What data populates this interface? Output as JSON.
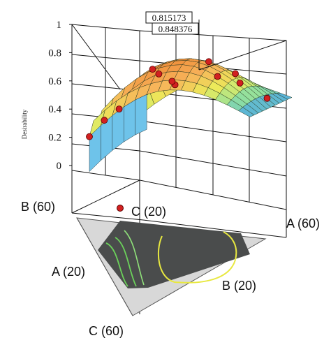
{
  "chart_data": {
    "type": "surface-3d-mixture",
    "ylabel": "Desirability",
    "z_ticks": [
      "0",
      "0.2",
      "0.4",
      "0.6",
      "0.8",
      "1"
    ],
    "zlim": [
      0,
      1
    ],
    "annotations": [
      "0.815173",
      "0.848376"
    ],
    "corner_labels": {
      "b_top": "B (60)",
      "c_top": "C (20)",
      "a_right": "A (60)",
      "a_left": "A (20)",
      "b_bottom": "B (20)",
      "c_bottom": "C (60)"
    },
    "max_desirability": 0.848376,
    "colormap": [
      "#4aa6e8",
      "#8fe0a0",
      "#ecec5a",
      "#f7b35a",
      "#f08e3a"
    ],
    "design_point_color": "#d22020",
    "contour_background": "#4a4c4c",
    "contour_line_colors": [
      "#6bd15a",
      "#e8e840"
    ]
  }
}
